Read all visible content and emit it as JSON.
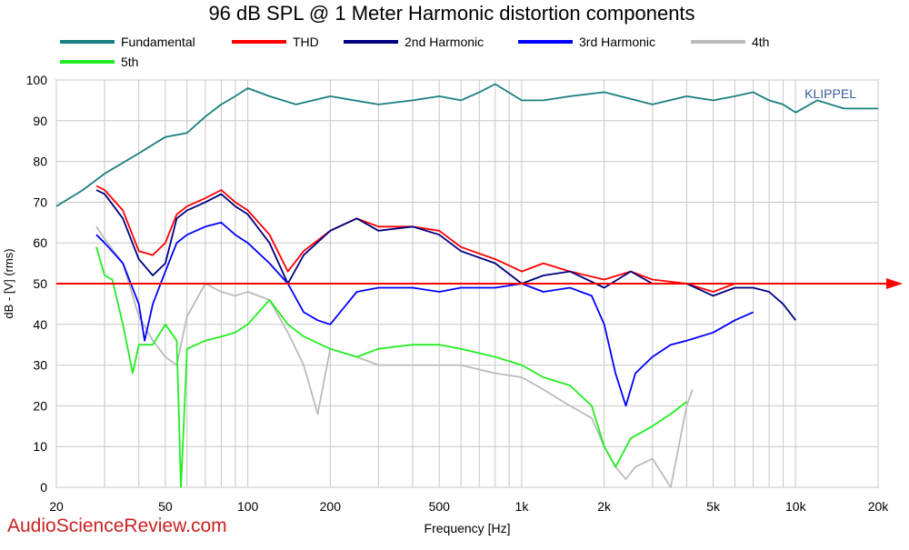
{
  "chart_data": {
    "type": "line",
    "title": "96 dB SPL @ 1 Meter Harmonic distortion components",
    "xlabel": "Frequency [Hz]",
    "ylabel": "dB - [V] (rms)",
    "x_scale": "log",
    "xlim": [
      20,
      20000
    ],
    "ylim": [
      0,
      100
    ],
    "grid": true,
    "legend_position": "top",
    "x_ticks": [
      {
        "value": 20,
        "label": "20"
      },
      {
        "value": 50,
        "label": "50"
      },
      {
        "value": 100,
        "label": "100"
      },
      {
        "value": 200,
        "label": "200"
      },
      {
        "value": 500,
        "label": "500"
      },
      {
        "value": 1000,
        "label": "1k"
      },
      {
        "value": 2000,
        "label": "2k"
      },
      {
        "value": 5000,
        "label": "5k"
      },
      {
        "value": 10000,
        "label": "10k"
      },
      {
        "value": 20000,
        "label": "20k"
      }
    ],
    "y_ticks": [
      0,
      10,
      20,
      30,
      40,
      50,
      60,
      70,
      80,
      90,
      100
    ],
    "watermark": "KLIPPEL",
    "reference_line": {
      "y": 50,
      "color": "#ff0000"
    },
    "series": [
      {
        "name": "Fundamental",
        "color": "#1a7f7f",
        "x": [
          20,
          25,
          30,
          40,
          50,
          60,
          70,
          80,
          90,
          100,
          120,
          150,
          200,
          300,
          400,
          500,
          600,
          700,
          800,
          1000,
          1200,
          1500,
          2000,
          3000,
          4000,
          5000,
          6000,
          7000,
          8000,
          9000,
          10000,
          12000,
          15000,
          20000
        ],
        "y": [
          69,
          73,
          77,
          82,
          86,
          87,
          91,
          94,
          96,
          98,
          96,
          94,
          96,
          94,
          95,
          96,
          95,
          97,
          99,
          95,
          95,
          96,
          97,
          94,
          96,
          95,
          96,
          97,
          95,
          94,
          92,
          95,
          93,
          93
        ]
      },
      {
        "name": "THD",
        "color": "#ff0000",
        "x": [
          28,
          30,
          35,
          40,
          45,
          50,
          55,
          60,
          70,
          80,
          90,
          100,
          120,
          140,
          160,
          200,
          250,
          300,
          400,
          500,
          600,
          800,
          1000,
          1200,
          1500,
          2000,
          2500,
          3000,
          4000,
          5000,
          6000,
          7000
        ],
        "y": [
          74,
          73,
          68,
          58,
          57,
          60,
          67,
          69,
          71,
          73,
          70,
          68,
          62,
          53,
          58,
          63,
          66,
          64,
          64,
          63,
          59,
          56,
          53,
          55,
          53,
          51,
          53,
          51,
          50,
          48,
          50,
          50
        ]
      },
      {
        "name": "2nd Harmonic",
        "color": "#000080",
        "x": [
          28,
          30,
          35,
          40,
          45,
          50,
          55,
          60,
          70,
          80,
          90,
          100,
          120,
          140,
          160,
          200,
          250,
          300,
          400,
          500,
          600,
          800,
          1000,
          1200,
          1500,
          2000,
          2500,
          3000,
          4000,
          5000,
          6000,
          7000,
          8000,
          9000,
          10000
        ],
        "y": [
          73,
          72,
          66,
          56,
          52,
          55,
          66,
          68,
          70,
          72,
          69,
          67,
          60,
          50,
          57,
          63,
          66,
          63,
          64,
          62,
          58,
          55,
          50,
          52,
          53,
          49,
          53,
          50,
          50,
          47,
          49,
          49,
          48,
          45,
          41
        ]
      },
      {
        "name": "3rd Harmonic",
        "color": "#0000ff",
        "x": [
          28,
          30,
          35,
          40,
          42,
          45,
          50,
          55,
          60,
          70,
          80,
          90,
          100,
          120,
          140,
          160,
          180,
          200,
          250,
          300,
          400,
          500,
          600,
          800,
          1000,
          1200,
          1500,
          1800,
          2000,
          2200,
          2400,
          2600,
          3000,
          3500,
          4000,
          5000,
          6000,
          7000
        ],
        "y": [
          62,
          60,
          55,
          45,
          36,
          45,
          53,
          60,
          62,
          64,
          65,
          62,
          60,
          55,
          50,
          43,
          41,
          40,
          48,
          49,
          49,
          48,
          49,
          49,
          50,
          48,
          49,
          47,
          40,
          28,
          20,
          28,
          32,
          35,
          36,
          38,
          41,
          43
        ]
      },
      {
        "name": "4th",
        "color": "#bbbbbb",
        "x": [
          28,
          30,
          35,
          40,
          45,
          50,
          55,
          60,
          70,
          80,
          90,
          100,
          120,
          140,
          160,
          180,
          200,
          250,
          300,
          400,
          500,
          600,
          800,
          1000,
          1200,
          1500,
          1800,
          2000,
          2200,
          2400,
          2600,
          3000,
          3500,
          4000,
          4200
        ],
        "y": [
          64,
          61,
          55,
          42,
          36,
          32,
          30,
          42,
          50,
          48,
          47,
          48,
          46,
          38,
          30,
          18,
          34,
          32,
          30,
          30,
          30,
          30,
          28,
          27,
          24,
          20,
          17,
          10,
          5,
          2,
          5,
          7,
          0,
          20,
          24
        ]
      },
      {
        "name": "5th",
        "color": "#22ee22",
        "x": [
          28,
          30,
          32,
          35,
          38,
          40,
          45,
          50,
          55,
          57,
          60,
          70,
          80,
          90,
          100,
          120,
          140,
          160,
          200,
          250,
          300,
          400,
          500,
          600,
          800,
          1000,
          1200,
          1500,
          1800,
          2000,
          2200,
          2500,
          3000,
          3500,
          4000
        ],
        "y": [
          59,
          52,
          51,
          40,
          28,
          35,
          35,
          40,
          36,
          0,
          34,
          36,
          37,
          38,
          40,
          46,
          40,
          37,
          34,
          32,
          34,
          35,
          35,
          34,
          32,
          30,
          27,
          25,
          20,
          10,
          5,
          12,
          15,
          18,
          21
        ]
      }
    ]
  },
  "footer": {
    "site": "AudioScienceReview.com"
  }
}
